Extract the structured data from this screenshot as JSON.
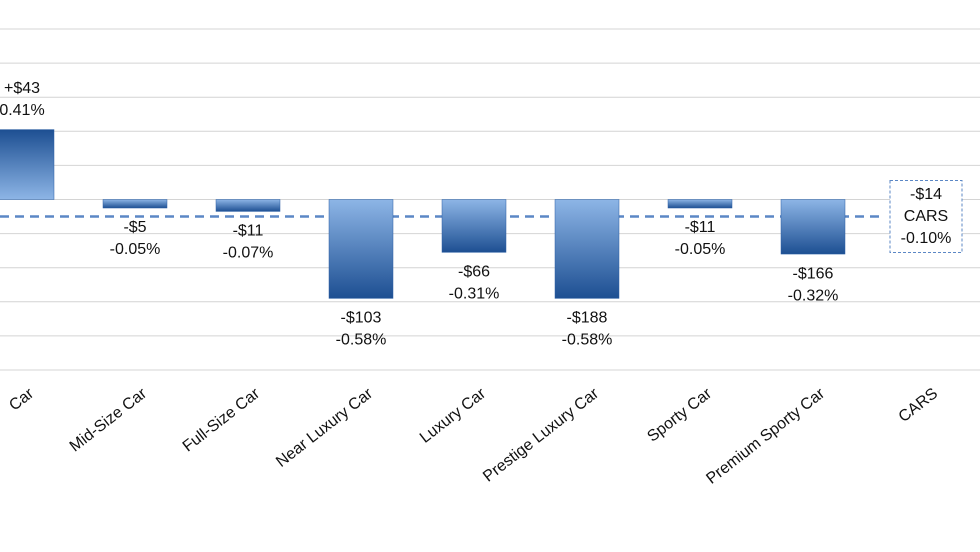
{
  "chart_data": {
    "type": "bar",
    "categories": [
      "Car",
      "Mid-Size Car",
      "Full-Size Car",
      "Near Luxury Car",
      "Luxury Car",
      "Prestige Luxury Car",
      "Sporty Car",
      "Premium Sporty Car",
      "CARS"
    ],
    "values": [
      0.41,
      -0.05,
      -0.07,
      -0.58,
      -0.31,
      -0.58,
      -0.05,
      -0.32,
      null
    ],
    "value_labels": [
      "0.41%",
      "-0.05%",
      "-0.07%",
      "-0.58%",
      "-0.31%",
      "-0.58%",
      "-0.05%",
      "-0.32%",
      "-0.10%"
    ],
    "dollar_values": [
      43,
      -5,
      -11,
      -103,
      -66,
      -188,
      -11,
      -166,
      -14
    ],
    "dollar_labels": [
      "+$43",
      "-$5",
      "-$11",
      "-$103",
      "-$66",
      "-$188",
      "-$11",
      "-$166",
      "-$14"
    ],
    "reference": {
      "value": -0.1,
      "color": "#5b87c5"
    },
    "color": "#2a5fa5",
    "ylim": [
      -1,
      1.17
    ],
    "yticks": [
      -1,
      -0.8,
      -0.6,
      -0.4,
      -0.2,
      0,
      0.2,
      0.4,
      0.6,
      0.8,
      1
    ],
    "grid": true
  }
}
